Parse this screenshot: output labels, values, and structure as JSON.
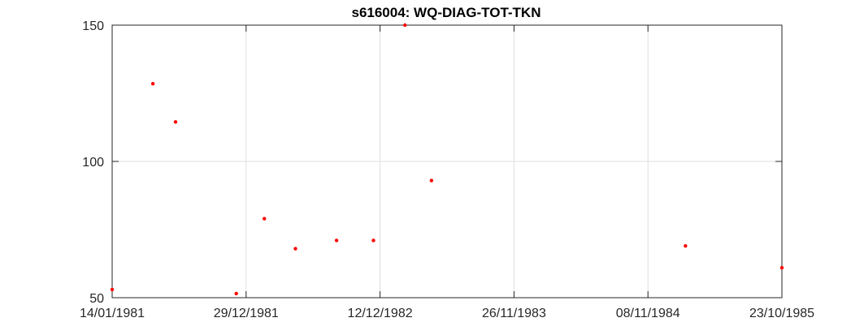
{
  "chart_data": {
    "type": "scatter",
    "title": "s616004: WQ-DIAG-TOT-TKN",
    "xlabel": "",
    "ylabel": "",
    "xlim": [
      "1981-01-14",
      "1985-10-23"
    ],
    "ylim": [
      50,
      150
    ],
    "x_ticks": [
      "14/01/1981",
      "29/12/1981",
      "12/12/1982",
      "26/11/1983",
      "08/11/1984",
      "23/10/1985"
    ],
    "y_ticks": [
      "50",
      "100",
      "150"
    ],
    "grid": true,
    "marker_color": "#ff0000",
    "grid_color": "#dfdfdf",
    "series": [
      {
        "points": [
          {
            "x": "1981-01-14",
            "y": 53.0
          },
          {
            "x": "1981-04-30",
            "y": 128.5
          },
          {
            "x": "1981-06-28",
            "y": 114.5
          },
          {
            "x": "1981-12-03",
            "y": 51.5
          },
          {
            "x": "1982-02-14",
            "y": 79.0
          },
          {
            "x": "1982-05-06",
            "y": 68.0
          },
          {
            "x": "1982-08-21",
            "y": 71.0
          },
          {
            "x": "1982-11-25",
            "y": 71.0
          },
          {
            "x": "1983-02-15",
            "y": 150.0
          },
          {
            "x": "1983-04-25",
            "y": 93.0
          },
          {
            "x": "1985-02-14",
            "y": 69.0
          },
          {
            "x": "1985-10-23",
            "y": 61.0
          }
        ]
      }
    ]
  }
}
